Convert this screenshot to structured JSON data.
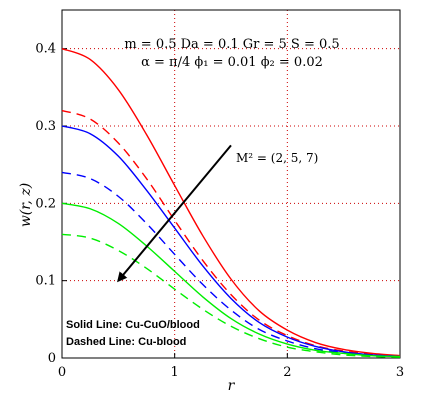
{
  "chart_data": {
    "type": "line",
    "xlabel": "r",
    "ylabel": "w(r, z)",
    "xlim": [
      0,
      3
    ],
    "ylim": [
      0,
      0.45
    ],
    "x_ticks": [
      "0",
      "1",
      "2",
      "3"
    ],
    "y_ticks": [
      "0",
      "0.1",
      "0.2",
      "0.3",
      "0.4"
    ],
    "grid": true,
    "parameters_line1": "m = 0.5   Da = 0.1   Gr = 5   S = 0.5",
    "parameters_line2": "α = π/4   ϕ₁ = 0.01   ϕ₂ = 0.02",
    "annotation": "M² = (2, 5, 7)",
    "legend_solid": "Solid Line: Cu-CuO/blood",
    "legend_dashed": "Dashed Line: Cu-blood",
    "x": [
      0,
      0.25,
      0.5,
      0.75,
      1.0,
      1.25,
      1.5,
      1.75,
      2.0,
      2.25,
      2.5,
      2.75,
      3.0
    ],
    "series": [
      {
        "color": "#ff0000",
        "dash": false,
        "values": [
          0.4,
          0.386,
          0.347,
          0.289,
          0.223,
          0.158,
          0.102,
          0.061,
          0.036,
          0.02,
          0.011,
          0.006,
          0.003
        ]
      },
      {
        "color": "#ff0000",
        "dash": true,
        "values": [
          0.32,
          0.309,
          0.278,
          0.232,
          0.178,
          0.126,
          0.082,
          0.049,
          0.029,
          0.016,
          0.009,
          0.005,
          0.003
        ]
      },
      {
        "color": "#0000ff",
        "dash": false,
        "values": [
          0.3,
          0.29,
          0.261,
          0.217,
          0.168,
          0.119,
          0.077,
          0.046,
          0.027,
          0.015,
          0.008,
          0.004,
          0.002
        ]
      },
      {
        "color": "#0000ff",
        "dash": true,
        "values": [
          0.24,
          0.232,
          0.209,
          0.174,
          0.134,
          0.095,
          0.062,
          0.037,
          0.022,
          0.012,
          0.007,
          0.004,
          0.002
        ]
      },
      {
        "color": "#00ee00",
        "dash": false,
        "values": [
          0.2,
          0.193,
          0.174,
          0.145,
          0.112,
          0.079,
          0.051,
          0.031,
          0.018,
          0.01,
          0.006,
          0.003,
          0.002
        ]
      },
      {
        "color": "#00ee00",
        "dash": true,
        "values": [
          0.16,
          0.155,
          0.139,
          0.116,
          0.089,
          0.063,
          0.041,
          0.025,
          0.014,
          0.008,
          0.004,
          0.002,
          0.001
        ]
      }
    ],
    "arrow": {
      "from": [
        1.5,
        0.275
      ],
      "to": [
        0.5,
        0.1
      ]
    }
  }
}
